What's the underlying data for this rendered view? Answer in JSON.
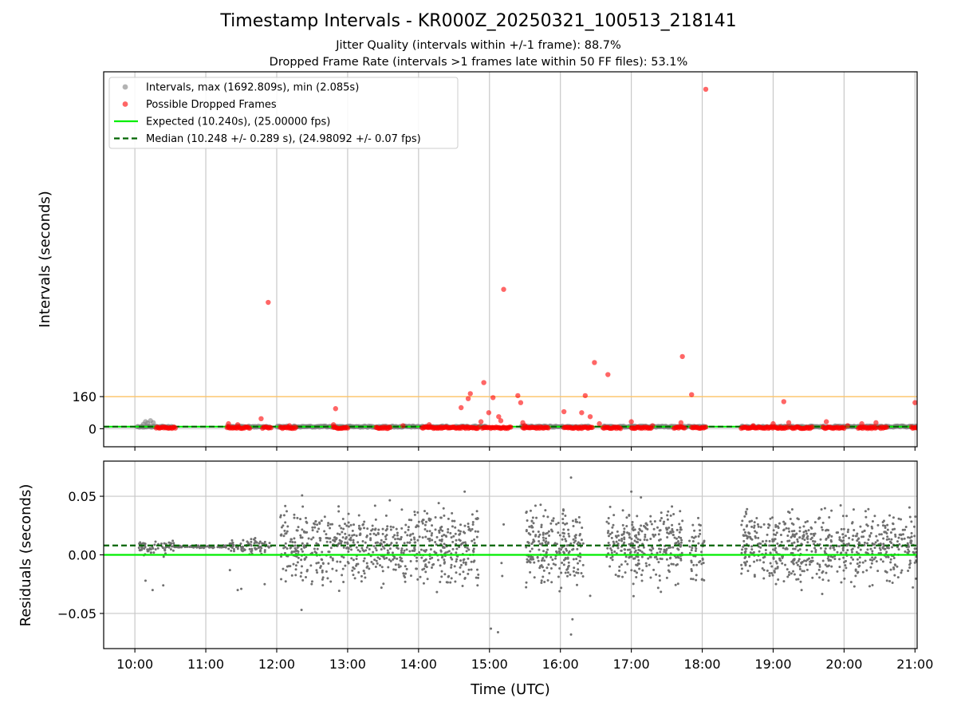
{
  "chart_data": {
    "type": "scatter",
    "title": "Timestamp Intervals - KR000Z_20250321_100513_218141",
    "subtitle_lines": [
      "Jitter Quality (intervals within +/-1 frame): 88.7%",
      "Dropped Frame Rate (intervals >1 frames late within 50 FF files): 53.1%"
    ],
    "xlabel": "Time (UTC)",
    "x_ticks": [
      "10:00",
      "11:00",
      "12:00",
      "13:00",
      "14:00",
      "15:00",
      "16:00",
      "17:00",
      "18:00",
      "19:00",
      "20:00",
      "21:00"
    ],
    "x_range_hours": [
      9.56,
      21.03
    ],
    "grid": true,
    "legend_position": "upper-left",
    "top_panel": {
      "ylabel": "Intervals (seconds)",
      "y_ticks": [
        0,
        160
      ],
      "ylim": [
        -90,
        1780
      ],
      "threshold_line": {
        "y": 160,
        "color": "#ffc466"
      },
      "legend": [
        {
          "label": "Intervals, max (1692.809s), min (2.085s)",
          "marker": "circle",
          "color": "#808080"
        },
        {
          "label": "Possible Dropped Frames",
          "marker": "circle",
          "color": "#ff0000"
        },
        {
          "label": "Expected (10.240s), (25.00000 fps)",
          "marker": "line",
          "color": "#00ee00"
        },
        {
          "label": "Median (10.248 +/- 0.289 s), (24.98092 +/- 0.07 fps)",
          "marker": "dashed-line",
          "color": "#006400"
        }
      ],
      "expected_interval": 10.24,
      "median_interval": 10.248,
      "interval_clusters": [
        {
          "x_start": 10.03,
          "x_end": 10.55,
          "y": 10.2
        },
        {
          "x_start": 11.3,
          "x_end": 11.9,
          "y": 10.2
        },
        {
          "x_start": 12.0,
          "x_end": 14.95,
          "y": 10.25
        },
        {
          "x_start": 15.45,
          "x_end": 16.4,
          "y": 10.25
        },
        {
          "x_start": 16.6,
          "x_end": 18.05,
          "y": 10.25
        },
        {
          "x_start": 18.55,
          "x_end": 21.03,
          "y": 10.25
        }
      ],
      "gray_outliers": [
        {
          "x": 10.12,
          "y": 22
        },
        {
          "x": 10.15,
          "y": 35
        },
        {
          "x": 10.18,
          "y": 28
        },
        {
          "x": 10.22,
          "y": 40
        },
        {
          "x": 10.26,
          "y": 30
        }
      ],
      "dropped_frames": [
        {
          "x": 11.88,
          "y": 630
        },
        {
          "x": 15.2,
          "y": 695
        },
        {
          "x": 18.05,
          "y": 1692.8
        },
        {
          "x": 14.92,
          "y": 230
        },
        {
          "x": 14.7,
          "y": 150
        },
        {
          "x": 14.73,
          "y": 175
        },
        {
          "x": 14.6,
          "y": 105
        },
        {
          "x": 15.05,
          "y": 155
        },
        {
          "x": 14.99,
          "y": 80
        },
        {
          "x": 15.13,
          "y": 60
        },
        {
          "x": 15.16,
          "y": 40
        },
        {
          "x": 15.4,
          "y": 165
        },
        {
          "x": 15.44,
          "y": 130
        },
        {
          "x": 15.47,
          "y": 30
        },
        {
          "x": 12.83,
          "y": 100
        },
        {
          "x": 11.78,
          "y": 50
        },
        {
          "x": 16.05,
          "y": 85
        },
        {
          "x": 16.3,
          "y": 80
        },
        {
          "x": 16.35,
          "y": 165
        },
        {
          "x": 16.48,
          "y": 330
        },
        {
          "x": 16.42,
          "y": 60
        },
        {
          "x": 16.67,
          "y": 270
        },
        {
          "x": 17.72,
          "y": 360
        },
        {
          "x": 17.85,
          "y": 170
        },
        {
          "x": 17.0,
          "y": 35
        },
        {
          "x": 17.7,
          "y": 30
        },
        {
          "x": 19.15,
          "y": 135
        },
        {
          "x": 19.75,
          "y": 35
        },
        {
          "x": 20.45,
          "y": 30
        },
        {
          "x": 20.25,
          "y": 25
        },
        {
          "x": 21.0,
          "y": 130
        },
        {
          "x": 11.32,
          "y": 25
        },
        {
          "x": 11.45,
          "y": 20
        },
        {
          "x": 12.18,
          "y": 15
        },
        {
          "x": 13.78,
          "y": 15
        },
        {
          "x": 14.15,
          "y": 20
        },
        {
          "x": 14.88,
          "y": 35
        },
        {
          "x": 15.5,
          "y": 15
        },
        {
          "x": 16.55,
          "y": 25
        },
        {
          "x": 17.3,
          "y": 15
        },
        {
          "x": 18.72,
          "y": 15
        },
        {
          "x": 19.0,
          "y": 25
        },
        {
          "x": 19.22,
          "y": 30
        },
        {
          "x": 20.05,
          "y": 15
        },
        {
          "x": 12.8,
          "y": 20
        }
      ],
      "dropped_frame_bands": [
        {
          "x_start": 10.3,
          "x_end": 10.57
        },
        {
          "x_start": 11.3,
          "x_end": 11.62
        },
        {
          "x_start": 11.8,
          "x_end": 11.92
        },
        {
          "x_start": 12.05,
          "x_end": 12.27
        },
        {
          "x_start": 12.8,
          "x_end": 13.0
        },
        {
          "x_start": 13.4,
          "x_end": 13.6
        },
        {
          "x_start": 14.05,
          "x_end": 14.85
        },
        {
          "x_start": 14.9,
          "x_end": 15.3
        },
        {
          "x_start": 15.47,
          "x_end": 15.83
        },
        {
          "x_start": 16.05,
          "x_end": 16.45
        },
        {
          "x_start": 16.6,
          "x_end": 16.85
        },
        {
          "x_start": 17.0,
          "x_end": 17.28
        },
        {
          "x_start": 17.6,
          "x_end": 17.75
        },
        {
          "x_start": 17.85,
          "x_end": 18.05
        },
        {
          "x_start": 18.55,
          "x_end": 19.2
        },
        {
          "x_start": 19.25,
          "x_end": 19.55
        },
        {
          "x_start": 19.7,
          "x_end": 20.0
        },
        {
          "x_start": 20.2,
          "x_end": 20.45
        },
        {
          "x_start": 20.5,
          "x_end": 20.6
        },
        {
          "x_start": 20.95,
          "x_end": 21.03
        }
      ]
    },
    "bottom_panel": {
      "ylabel": "Residuals (seconds)",
      "y_ticks": [
        "0.05",
        "0.00",
        "−0.05"
      ],
      "y_tick_values": [
        0.05,
        0.0,
        -0.05
      ],
      "ylim": [
        -0.08,
        0.08
      ],
      "expected_residual": 0.0,
      "median_residual": 0.008,
      "residual_groups": [
        {
          "x_start": 10.05,
          "x_end": 10.55,
          "center": 0.006,
          "spread": 0.004,
          "count": 60
        },
        {
          "x_start": 10.55,
          "x_end": 11.3,
          "center": 0.007,
          "spread": 0.0008,
          "count": 80
        },
        {
          "x_start": 11.3,
          "x_end": 11.92,
          "center": 0.007,
          "spread": 0.004,
          "count": 80
        },
        {
          "x_start": 12.05,
          "x_end": 14.85,
          "center": 0.007,
          "spread": 0.02,
          "count": 700
        },
        {
          "x_start": 15.5,
          "x_end": 16.33,
          "center": 0.008,
          "spread": 0.02,
          "count": 230
        },
        {
          "x_start": 16.65,
          "x_end": 17.72,
          "center": 0.008,
          "spread": 0.02,
          "count": 300
        },
        {
          "x_start": 17.82,
          "x_end": 18.03,
          "center": 0.005,
          "spread": 0.02,
          "count": 50
        },
        {
          "x_start": 18.55,
          "x_end": 21.03,
          "center": 0.007,
          "spread": 0.02,
          "count": 650
        }
      ],
      "residual_outliers": [
        {
          "x": 15.02,
          "y": -0.063
        },
        {
          "x": 15.12,
          "y": -0.066
        },
        {
          "x": 16.15,
          "y": -0.068
        },
        {
          "x": 16.15,
          "y": 0.066
        },
        {
          "x": 16.17,
          "y": -0.055
        },
        {
          "x": 15.18,
          "y": -0.018
        },
        {
          "x": 15.17,
          "y": -0.007
        },
        {
          "x": 15.2,
          "y": 0.026
        },
        {
          "x": 10.25,
          "y": -0.03
        },
        {
          "x": 10.4,
          "y": -0.026
        },
        {
          "x": 10.15,
          "y": -0.022
        },
        {
          "x": 11.45,
          "y": -0.03
        },
        {
          "x": 11.5,
          "y": -0.029
        },
        {
          "x": 11.34,
          "y": -0.013
        },
        {
          "x": 11.83,
          "y": -0.025
        },
        {
          "x": 14.65,
          "y": 0.054
        },
        {
          "x": 12.35,
          "y": -0.047
        },
        {
          "x": 17.0,
          "y": 0.054
        },
        {
          "x": 16.42,
          "y": -0.035
        }
      ]
    }
  }
}
